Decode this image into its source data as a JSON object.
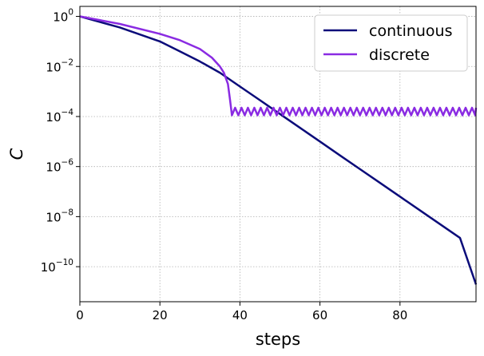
{
  "chart_data": {
    "type": "line",
    "title": "",
    "xlabel": "steps",
    "ylabel": "C",
    "xlim": [
      0,
      99
    ],
    "ylim_log10": [
      -11.4,
      0.4
    ],
    "y_scale": "log",
    "grid": true,
    "legend_position": "top-right",
    "x_ticks": [
      "0",
      "20",
      "40",
      "60",
      "80"
    ],
    "y_ticks": [
      {
        "base": "10",
        "exp": "0"
      },
      {
        "base": "10",
        "exp": "−2"
      },
      {
        "base": "10",
        "exp": "−4"
      },
      {
        "base": "10",
        "exp": "−6"
      },
      {
        "base": "10",
        "exp": "−8"
      },
      {
        "base": "10",
        "exp": "−10"
      }
    ],
    "series": [
      {
        "name": "continuous",
        "color": "#0b0c7a",
        "points": [
          [
            0,
            1
          ],
          [
            10,
            0.36
          ],
          [
            20,
            0.1
          ],
          [
            25,
            0.04
          ],
          [
            30,
            0.0158
          ],
          [
            35,
            0.0056
          ],
          [
            40,
            0.00158
          ],
          [
            45,
            0.00045
          ],
          [
            50,
            0.000126
          ],
          [
            55,
            3.55e-05
          ],
          [
            60,
            1e-05
          ],
          [
            65,
            2.8e-06
          ],
          [
            70,
            7.9e-07
          ],
          [
            75,
            2.24e-07
          ],
          [
            80,
            6.3e-08
          ],
          [
            85,
            1.78e-08
          ],
          [
            90,
            5e-09
          ],
          [
            95,
            1.41e-09
          ],
          [
            99,
            1.95e-11
          ]
        ]
      },
      {
        "name": "discrete",
        "color": "#8a2be2",
        "points": [
          [
            0,
            1
          ],
          [
            10,
            0.5
          ],
          [
            20,
            0.2
          ],
          [
            25,
            0.112
          ],
          [
            30,
            0.05
          ],
          [
            33,
            0.0224
          ],
          [
            35,
            0.01
          ],
          [
            36,
            0.0056
          ],
          [
            37,
            0.002
          ],
          [
            37.5,
            0.0005
          ],
          [
            38,
            0.000112
          ]
        ],
        "oscillation": {
          "start": 38,
          "end": 99,
          "period": 1.6,
          "low": 0.000112,
          "high": 0.000224
        }
      }
    ]
  }
}
